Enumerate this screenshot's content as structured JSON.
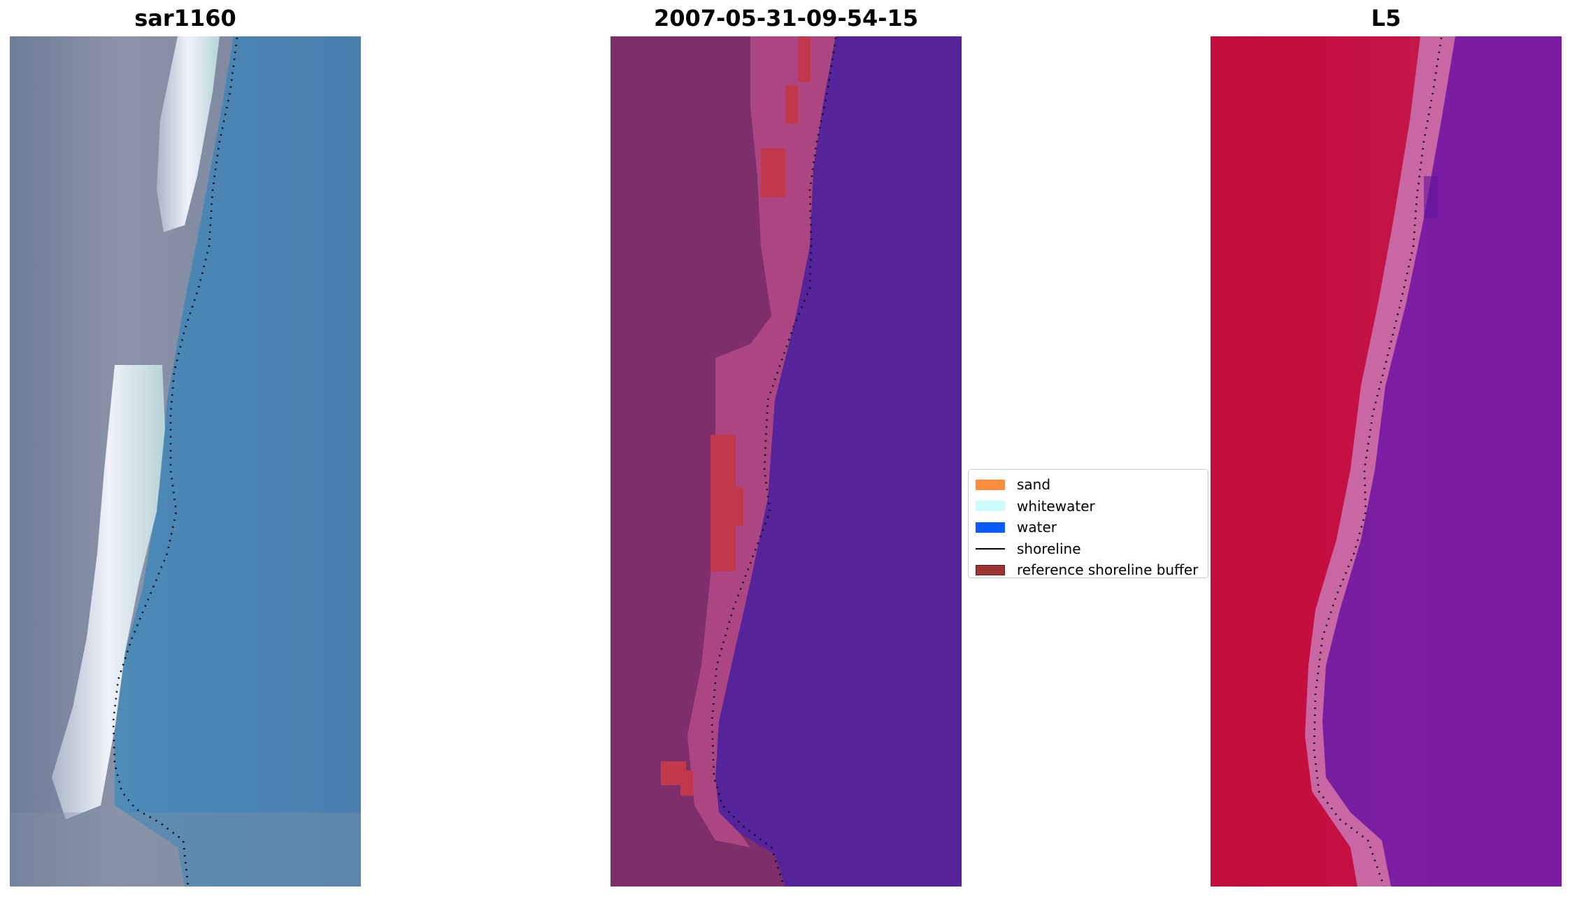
{
  "panels": [
    {
      "id": "rgb",
      "title": "sar1160"
    },
    {
      "id": "classified",
      "title": "2007-05-31-09-54-15"
    },
    {
      "id": "index",
      "title": "L5"
    }
  ],
  "legend": {
    "placement": "center-right of middle panel",
    "items": [
      {
        "label": "sand",
        "type": "swatch",
        "color": "#ff8c3d"
      },
      {
        "label": "whitewater",
        "type": "swatch",
        "color": "#cdfcfc"
      },
      {
        "label": "water",
        "type": "swatch",
        "color": "#0a5cff"
      },
      {
        "label": "shoreline",
        "type": "line",
        "color": "#000000"
      },
      {
        "label": "reference shoreline buffer",
        "type": "swatch",
        "color": "#9e3535"
      }
    ]
  },
  "colors": {
    "rgb_water": "#4a86b4",
    "rgb_land": "#7f8aa0",
    "rgb_whitewater": "#e8ecf4",
    "classified_land": "#7e2f6b",
    "classified_sand_overlay": "#b44a86",
    "classified_water": "#55249b",
    "classified_buffer": "#c1384a",
    "index_land": "#c40e3e",
    "index_transition": "#c867a4",
    "index_water": "#7a1ba0",
    "shoreline": "#000000"
  }
}
